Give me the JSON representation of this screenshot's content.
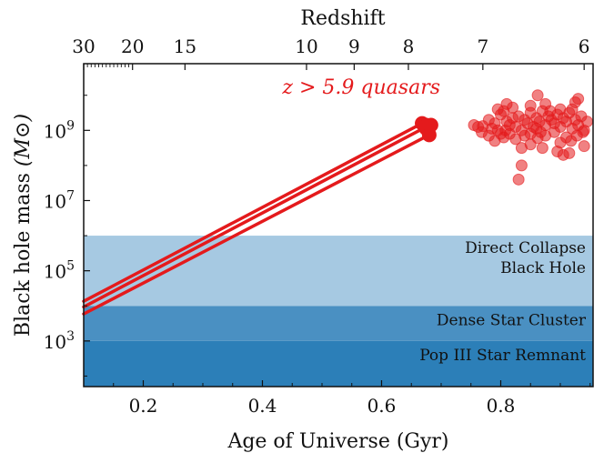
{
  "chart_data": {
    "type": "scatter",
    "title": "",
    "xlabel": "Age of Universe (Gyr)",
    "ylabel": "Black hole mass",
    "ylabel_unit": "(M⊙)",
    "xlim": [
      0.1,
      0.955
    ],
    "ylim_log10": [
      1.7,
      10.9
    ],
    "x_ticks": [
      {
        "value": 0.2,
        "label": "0.2"
      },
      {
        "value": 0.4,
        "label": "0.4"
      },
      {
        "value": 0.6,
        "label": "0.6"
      },
      {
        "value": 0.8,
        "label": "0.8"
      }
    ],
    "y_ticks": [
      {
        "exp": 3,
        "base": "10",
        "sup": "3"
      },
      {
        "exp": 5,
        "base": "10",
        "sup": "5"
      },
      {
        "exp": 7,
        "base": "10",
        "sup": "7"
      },
      {
        "exp": 9,
        "base": "10",
        "sup": "9"
      }
    ],
    "top_axis": {
      "label": "Redshift",
      "ticks": [
        {
          "age": 0.1,
          "label": "30"
        },
        {
          "age": 0.182,
          "label": "20"
        },
        {
          "age": 0.27,
          "label": "15"
        },
        {
          "age": 0.474,
          "label": "10"
        },
        {
          "age": 0.554,
          "label": "9"
        },
        {
          "age": 0.645,
          "label": "8"
        },
        {
          "age": 0.77,
          "label": "7"
        },
        {
          "age": 0.94,
          "label": "6"
        }
      ]
    },
    "bands": [
      {
        "name": "Pop III Star Remnant",
        "lines": [
          "Pop III Star Remnant"
        ],
        "log_min": 1.7,
        "log_max": 3.0,
        "color": "#2c7fb8"
      },
      {
        "name": "Dense Star Cluster",
        "lines": [
          "Dense Star Cluster"
        ],
        "log_min": 3.0,
        "log_max": 4.0,
        "color": "#4a90c2"
      },
      {
        "name": "Direct Collapse Black Hole",
        "lines": [
          "Direct Collapse",
          "Black Hole"
        ],
        "log_min": 4.0,
        "log_max": 6.0,
        "color": "#a6c9e2"
      }
    ],
    "growth_tracks": [
      {
        "x0": 0.1,
        "y0": 4.13,
        "x1": 0.668,
        "y1": 9.2
      },
      {
        "x0": 0.1,
        "y0": 3.97,
        "x1": 0.675,
        "y1": 9.1
      },
      {
        "x0": 0.1,
        "y0": 3.77,
        "x1": 0.68,
        "y1": 8.87
      }
    ],
    "series_label": "z > 5.9 quasars",
    "series_label_position": {
      "x": 0.566,
      "y": 10.05
    },
    "quasars": [
      {
        "x": 0.668,
        "y": 9.2
      },
      {
        "x": 0.675,
        "y": 9.15
      },
      {
        "x": 0.683,
        "y": 9.15
      },
      {
        "x": 0.675,
        "y": 9.05
      },
      {
        "x": 0.68,
        "y": 8.87
      },
      {
        "x": 0.755,
        "y": 9.15
      },
      {
        "x": 0.762,
        "y": 9.1
      },
      {
        "x": 0.77,
        "y": 9.12
      },
      {
        "x": 0.78,
        "y": 9.3
      },
      {
        "x": 0.79,
        "y": 9.2
      },
      {
        "x": 0.795,
        "y": 9.0
      },
      {
        "x": 0.8,
        "y": 9.45
      },
      {
        "x": 0.805,
        "y": 9.55
      },
      {
        "x": 0.81,
        "y": 9.25
      },
      {
        "x": 0.815,
        "y": 9.15
      },
      {
        "x": 0.82,
        "y": 9.35
      },
      {
        "x": 0.825,
        "y": 9.1
      },
      {
        "x": 0.83,
        "y": 9.4
      },
      {
        "x": 0.835,
        "y": 9.0
      },
      {
        "x": 0.84,
        "y": 9.3
      },
      {
        "x": 0.845,
        "y": 9.2
      },
      {
        "x": 0.85,
        "y": 9.5
      },
      {
        "x": 0.855,
        "y": 9.1
      },
      {
        "x": 0.86,
        "y": 9.35
      },
      {
        "x": 0.865,
        "y": 9.25
      },
      {
        "x": 0.87,
        "y": 9.55
      },
      {
        "x": 0.875,
        "y": 9.15
      },
      {
        "x": 0.88,
        "y": 9.4
      },
      {
        "x": 0.885,
        "y": 9.3
      },
      {
        "x": 0.89,
        "y": 9.2
      },
      {
        "x": 0.895,
        "y": 9.45
      },
      {
        "x": 0.9,
        "y": 9.1
      },
      {
        "x": 0.905,
        "y": 9.35
      },
      {
        "x": 0.91,
        "y": 9.25
      },
      {
        "x": 0.915,
        "y": 9.5
      },
      {
        "x": 0.92,
        "y": 9.6
      },
      {
        "x": 0.925,
        "y": 9.3
      },
      {
        "x": 0.93,
        "y": 9.15
      },
      {
        "x": 0.935,
        "y": 9.4
      },
      {
        "x": 0.94,
        "y": 9.0
      },
      {
        "x": 0.768,
        "y": 8.95
      },
      {
        "x": 0.78,
        "y": 8.85
      },
      {
        "x": 0.79,
        "y": 8.7
      },
      {
        "x": 0.805,
        "y": 8.8
      },
      {
        "x": 0.815,
        "y": 8.9
      },
      {
        "x": 0.825,
        "y": 8.75
      },
      {
        "x": 0.84,
        "y": 8.85
      },
      {
        "x": 0.85,
        "y": 8.9
      },
      {
        "x": 0.862,
        "y": 8.78
      },
      {
        "x": 0.875,
        "y": 8.85
      },
      {
        "x": 0.89,
        "y": 8.95
      },
      {
        "x": 0.9,
        "y": 8.65
      },
      {
        "x": 0.91,
        "y": 8.8
      },
      {
        "x": 0.918,
        "y": 8.7
      },
      {
        "x": 0.928,
        "y": 8.85
      },
      {
        "x": 0.94,
        "y": 8.55
      },
      {
        "x": 0.938,
        "y": 8.95
      },
      {
        "x": 0.795,
        "y": 9.6
      },
      {
        "x": 0.82,
        "y": 9.65
      },
      {
        "x": 0.85,
        "y": 9.7
      },
      {
        "x": 0.875,
        "y": 9.75
      },
      {
        "x": 0.9,
        "y": 9.6
      },
      {
        "x": 0.925,
        "y": 9.8
      },
      {
        "x": 0.862,
        "y": 10.0
      },
      {
        "x": 0.93,
        "y": 9.9
      },
      {
        "x": 0.81,
        "y": 9.75
      },
      {
        "x": 0.895,
        "y": 8.4
      },
      {
        "x": 0.905,
        "y": 8.3
      },
      {
        "x": 0.915,
        "y": 8.35
      },
      {
        "x": 0.835,
        "y": 8.5
      },
      {
        "x": 0.85,
        "y": 8.6
      },
      {
        "x": 0.87,
        "y": 8.5
      },
      {
        "x": 0.835,
        "y": 8.0
      },
      {
        "x": 0.83,
        "y": 7.6
      },
      {
        "x": 0.785,
        "y": 9.05
      },
      {
        "x": 0.86,
        "y": 9.05
      },
      {
        "x": 0.92,
        "y": 9.05
      },
      {
        "x": 0.808,
        "y": 9.0
      },
      {
        "x": 0.883,
        "y": 9.55
      },
      {
        "x": 0.945,
        "y": 9.25
      },
      {
        "x": 0.8,
        "y": 8.9
      },
      {
        "x": 0.867,
        "y": 8.95
      }
    ],
    "series_color": "#e41a1c"
  }
}
